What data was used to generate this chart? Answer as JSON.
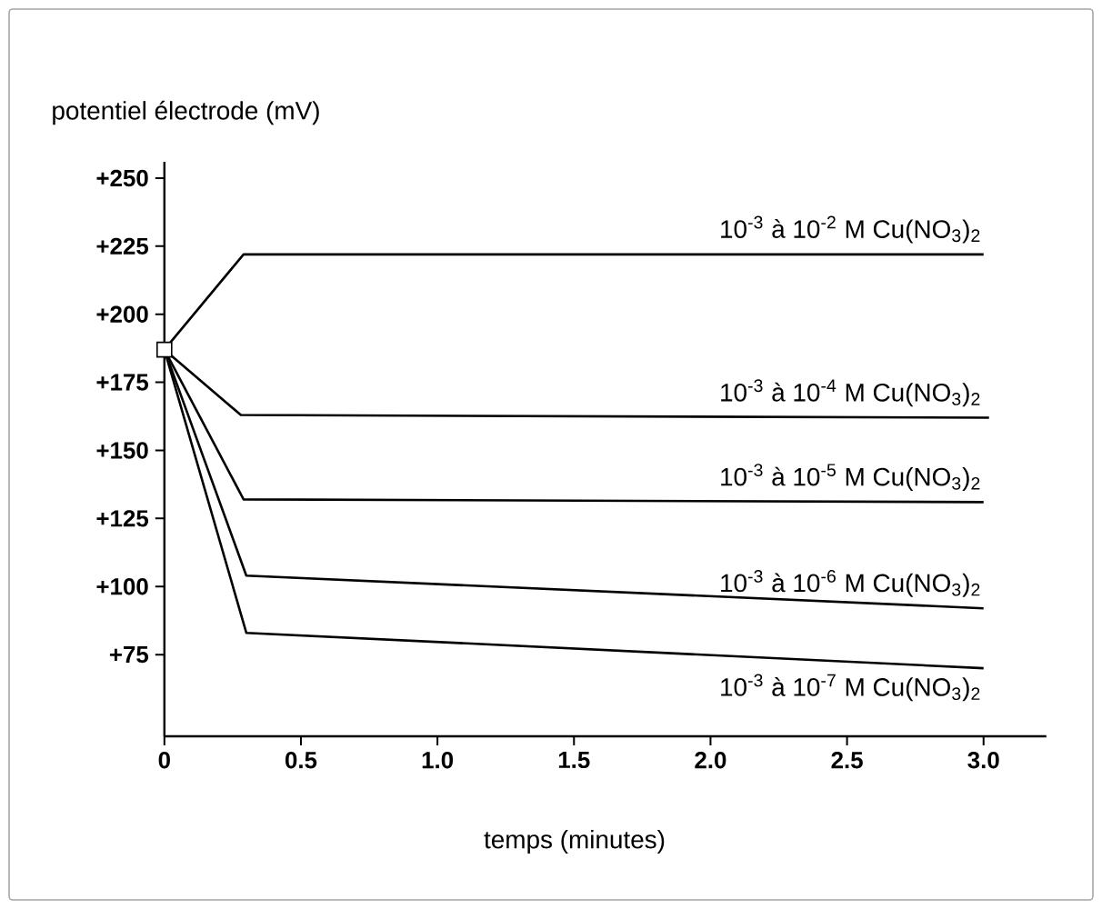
{
  "chart_data": {
    "type": "line",
    "xlabel": "temps (minutes)",
    "ylabel": "potentiel électrode (mV)",
    "xlim": [
      0,
      3.23
    ],
    "ylim": [
      45,
      256
    ],
    "xticks": [
      0,
      0.5,
      {
        "value": 1,
        "label": "1.0"
      },
      {
        "value": 1.5,
        "label": "1.5"
      },
      {
        "value": 2,
        "label": "2.0"
      },
      2.5,
      {
        "value": 3,
        "label": "3.0"
      }
    ],
    "yticks": [
      {
        "value": 75,
        "label": "+75"
      },
      {
        "value": 100,
        "label": "+100"
      },
      {
        "value": 125,
        "label": "+125"
      },
      {
        "value": 150,
        "label": "+150"
      },
      {
        "value": 175,
        "label": "+175"
      },
      {
        "value": 200,
        "label": "+200"
      },
      {
        "value": 225,
        "label": "+225"
      },
      {
        "value": 250,
        "label": "+250"
      }
    ],
    "line_style": "solid",
    "marker": "none",
    "series": [
      {
        "name": "10$^{-3}$ à 10$^{-2}$ M Cu(NO$_{3}$)$_{2}$",
        "color": "#000000",
        "x": [
          0,
          0.29,
          3.0
        ],
        "values": [
          187,
          222,
          222
        ]
      },
      {
        "name": "10$^{-3}$ à 10$^{-4}$ M Cu(NO$_{3}$)$_{2}$",
        "color": "#000000",
        "x": [
          0,
          0.28,
          3.02
        ],
        "values": [
          187,
          163,
          162
        ]
      },
      {
        "name": "10$^{-3}$ à 10$^{-5}$ M Cu(NO$_{3}$)$_{2}$",
        "color": "#000000",
        "x": [
          0,
          0.29,
          3.0
        ],
        "values": [
          187,
          132,
          131
        ]
      },
      {
        "name": "10$^{-3}$ à 10$^{-6}$ M Cu(NO$_{3}$)$_{2}$",
        "color": "#000000",
        "x": [
          0,
          0.3,
          3.0
        ],
        "values": [
          187,
          104,
          92
        ]
      },
      {
        "name": "10$^{-3}$ à 10$^{-7}$ M Cu(NO$_{3}$)$_{2}$",
        "color": "#000000",
        "x": [
          0,
          0.3,
          3.0
        ],
        "values": [
          187,
          83,
          70
        ]
      },
      {
        "type": "scatter",
        "marker": "square",
        "color": "#000000",
        "x": [
          0
        ],
        "values": [
          187
        ]
      }
    ]
  }
}
